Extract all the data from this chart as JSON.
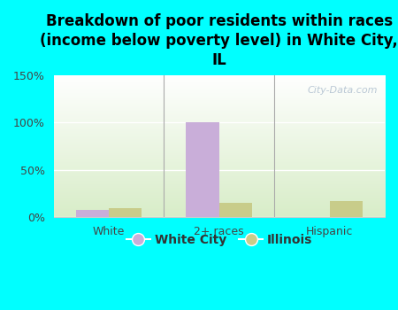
{
  "title": "Breakdown of poor residents within races\n(income below poverty level) in White City,\nIL",
  "categories": [
    "White",
    "2+ races",
    "Hispanic"
  ],
  "white_city_values": [
    8,
    100,
    0
  ],
  "illinois_values": [
    10,
    15,
    17
  ],
  "white_city_color": "#c9aed9",
  "illinois_color": "#c8cc8a",
  "background_color": "#00ffff",
  "plot_bg_top": "#ffffff",
  "plot_bg_bottom": "#d8edc8",
  "ylim": [
    0,
    150
  ],
  "yticks": [
    0,
    50,
    100,
    150
  ],
  "ytick_labels": [
    "0%",
    "50%",
    "100%",
    "150%"
  ],
  "bar_width": 0.3,
  "title_fontsize": 12,
  "legend_labels": [
    "White City",
    "Illinois"
  ],
  "watermark": "City-Data.com"
}
